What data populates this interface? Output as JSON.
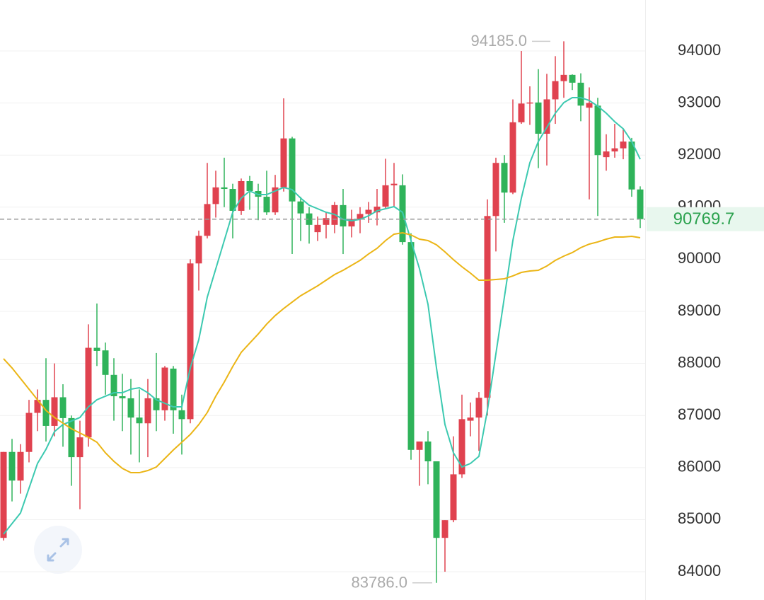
{
  "chart_data": {
    "type": "candlestick",
    "ylim": [
      83457,
      94978
    ],
    "yticks": [
      84000,
      85000,
      86000,
      87000,
      88000,
      89000,
      90000,
      91000,
      92000,
      93000,
      94000
    ],
    "grid": true,
    "up_color": "#e0424f",
    "down_color": "#2fb35a",
    "open": [
      84650,
      86300,
      85750,
      86300,
      87050,
      87300,
      86800,
      87350,
      86950,
      86200,
      86580,
      88300,
      88250,
      87780,
      87370,
      87330,
      86960,
      86850,
      87330,
      87100,
      87900,
      87100,
      86930,
      89920,
      90450,
      91060,
      91380,
      91350,
      90930,
      91500,
      91310,
      91200,
      90900,
      91380,
      92320,
      91110,
      90880,
      90520,
      90660,
      90660,
      91040,
      90630,
      90770,
      90870,
      90900,
      91010,
      91420,
      91420,
      90330,
      86340,
      86500,
      86120,
      84650,
      84990,
      85870,
      86900,
      86960,
      87340,
      90830,
      91850,
      91280,
      92630,
      92990,
      93010,
      92410,
      93070,
      93420,
      93540,
      93390,
      92910,
      92950,
      91960,
      92070,
      92130,
      92260,
      91340
    ],
    "high": [
      86300,
      86550,
      86450,
      87300,
      87500,
      88100,
      88000,
      87600,
      87000,
      86900,
      88750,
      89150,
      88400,
      88100,
      87800,
      87700,
      87500,
      87700,
      88200,
      87950,
      87950,
      87400,
      90000,
      90550,
      91850,
      91700,
      91950,
      91450,
      91550,
      91600,
      91450,
      91700,
      91620,
      93090,
      92350,
      91200,
      91000,
      90820,
      90900,
      91100,
      91350,
      90950,
      91000,
      91100,
      91350,
      91930,
      91850,
      91630,
      90500,
      86500,
      86700,
      86120,
      84990,
      86600,
      87400,
      87250,
      87450,
      91150,
      91950,
      92000,
      93070,
      94000,
      93320,
      93650,
      93560,
      93900,
      94185,
      93550,
      93570,
      93300,
      93100,
      92400,
      92600,
      92500,
      92330,
      91400
    ],
    "low": [
      84600,
      85350,
      85500,
      86100,
      86700,
      86500,
      86600,
      86400,
      85650,
      85200,
      86400,
      87950,
      87400,
      86900,
      86700,
      86250,
      86100,
      86200,
      86700,
      86900,
      86650,
      86250,
      86850,
      89400,
      90400,
      90800,
      91000,
      90400,
      90850,
      90950,
      90750,
      90850,
      90850,
      91300,
      90100,
      90350,
      90300,
      90350,
      90400,
      90500,
      90100,
      90420,
      90500,
      90700,
      90650,
      90980,
      91000,
      90280,
      86150,
      85650,
      85680,
      83786,
      84000,
      84950,
      85800,
      86600,
      86320,
      87000,
      90150,
      90700,
      91250,
      92600,
      92580,
      91750,
      91800,
      92600,
      93100,
      93250,
      92650,
      91150,
      90830,
      91700,
      91950,
      91920,
      91200,
      90600
    ],
    "close": [
      86300,
      85750,
      86300,
      87050,
      87300,
      86800,
      87350,
      86950,
      86200,
      86580,
      88300,
      88240,
      87780,
      87370,
      87330,
      86960,
      86850,
      87330,
      87100,
      87920,
      87100,
      86930,
      89920,
      90450,
      91060,
      91380,
      91350,
      90930,
      91500,
      91310,
      91200,
      90900,
      91380,
      92320,
      91110,
      90880,
      90660,
      90660,
      90790,
      91040,
      90630,
      90770,
      90870,
      90950,
      91010,
      91420,
      91450,
      90330,
      86340,
      86500,
      86120,
      84650,
      84990,
      85870,
      86930,
      86960,
      87340,
      90830,
      91850,
      91280,
      92630,
      92990,
      93010,
      92410,
      93070,
      93420,
      93540,
      93390,
      92950,
      93000,
      92000,
      92070,
      92130,
      92260,
      91340,
      90770
    ],
    "lines": [
      {
        "color": "#3cc9b0",
        "values": [
          84720,
          84924,
          85128,
          85603,
          86079,
          86351,
          86690,
          86826,
          86894,
          86962,
          87166,
          87302,
          87370,
          87437,
          87437,
          87505,
          87533,
          87437,
          87302,
          87234,
          87166,
          87166,
          87913,
          88457,
          89272,
          89815,
          90359,
          90902,
          91174,
          91310,
          91242,
          91242,
          91310,
          91378,
          91337,
          91174,
          91038,
          90970,
          90902,
          90861,
          90766,
          90739,
          90766,
          90834,
          90929,
          90970,
          91011,
          90902,
          90359,
          89815,
          89136,
          87913,
          86826,
          86283,
          86011,
          86079,
          86215,
          87098,
          88185,
          89272,
          90359,
          91174,
          91853,
          92261,
          92533,
          92804,
          93008,
          93103,
          93103,
          93049,
          92940,
          92804,
          92641,
          92505,
          92261,
          91921
        ]
      },
      {
        "color": "#ebb516",
        "values": [
          88090,
          87913,
          87709,
          87505,
          87302,
          87098,
          86962,
          86853,
          86745,
          86663,
          86582,
          86486,
          86283,
          86120,
          85984,
          85902,
          85902,
          85943,
          86011,
          86174,
          86337,
          86486,
          86636,
          86826,
          87057,
          87370,
          87641,
          87940,
          88212,
          88389,
          88565,
          88755,
          88918,
          89054,
          89177,
          89299,
          89394,
          89489,
          89598,
          89706,
          89788,
          89883,
          89978,
          90101,
          90209,
          90359,
          90481,
          90508,
          90467,
          90386,
          90359,
          90277,
          90141,
          89992,
          89856,
          89734,
          89598,
          89598,
          89611,
          89625,
          89680,
          89747,
          89774,
          89788,
          89870,
          89978,
          90060,
          90128,
          90223,
          90291,
          90332,
          90386,
          90427,
          90427,
          90440,
          90413
        ]
      }
    ],
    "last_price": 90769.7,
    "last_price_color": "#2ca24f",
    "annotations": [
      {
        "index": 66,
        "value": 94185,
        "label": "94185.0"
      },
      {
        "index": 51,
        "value": 83786,
        "label": "83786.0"
      }
    ]
  }
}
